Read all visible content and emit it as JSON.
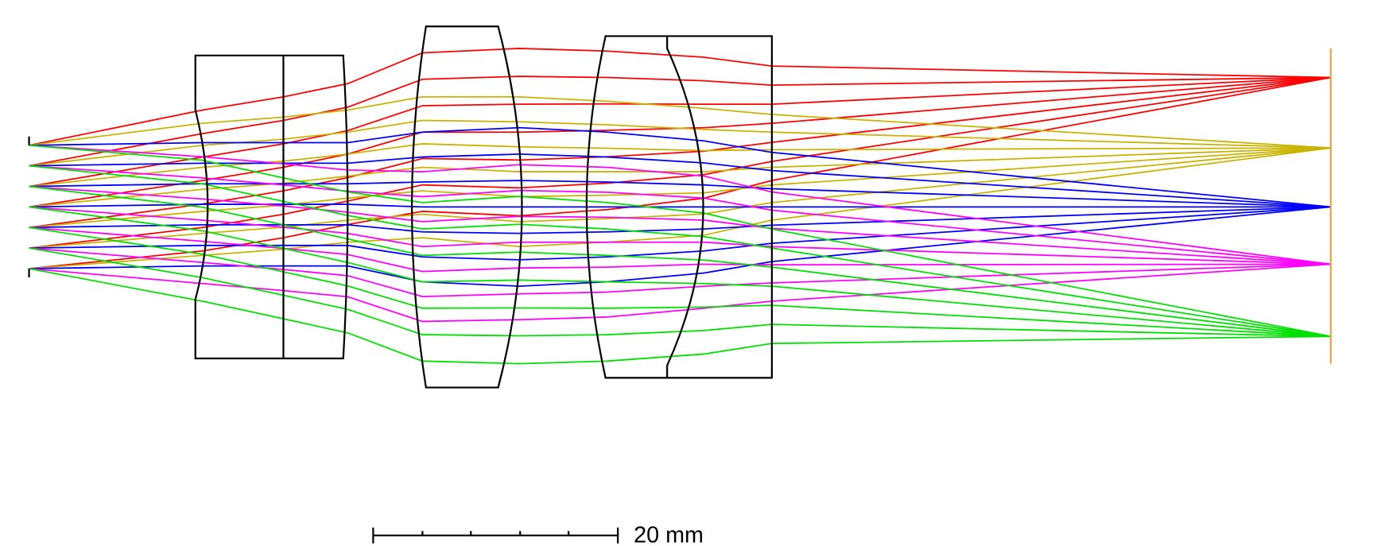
{
  "scale_bar": {
    "label": "20 mm"
  }
}
